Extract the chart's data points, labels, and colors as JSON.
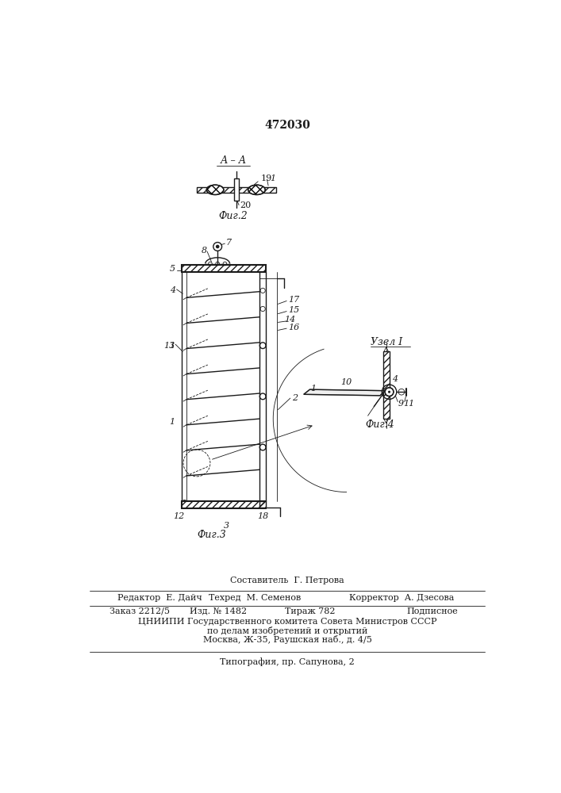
{
  "patent_number": "472030",
  "fig2_label": "Фиг.2",
  "fig3_label": "Фиг.3",
  "fig4_label": "Фиг.4",
  "section_label": "А – А",
  "node_label": "Узел I",
  "bottom_text_line1": "Составитель  Г. Петрова",
  "bottom_text_line2_left": "Редактор  Е. Дайч",
  "bottom_text_line2_mid": "Техред  М. Семенов",
  "bottom_text_line2_right": "Корректор  А. Дзесова",
  "bottom_text_line3_left": "Заказ 2212/5",
  "bottom_text_line3_mid": "Изд. № 1482",
  "bottom_text_line3_mid2": "Тираж 782",
  "bottom_text_line3_right": "Подписное",
  "bottom_text_line4": "ЦНИИПИ Государственного комитета Совета Министров СССР",
  "bottom_text_line5": "по делам изобретений и открытий",
  "bottom_text_line6": "Москва, Ж-35, Раушская наб., д. 4/5",
  "bottom_text_line7": "Типография, пр. Сапунова, 2",
  "bg_color": "#ffffff",
  "line_color": "#1a1a1a"
}
